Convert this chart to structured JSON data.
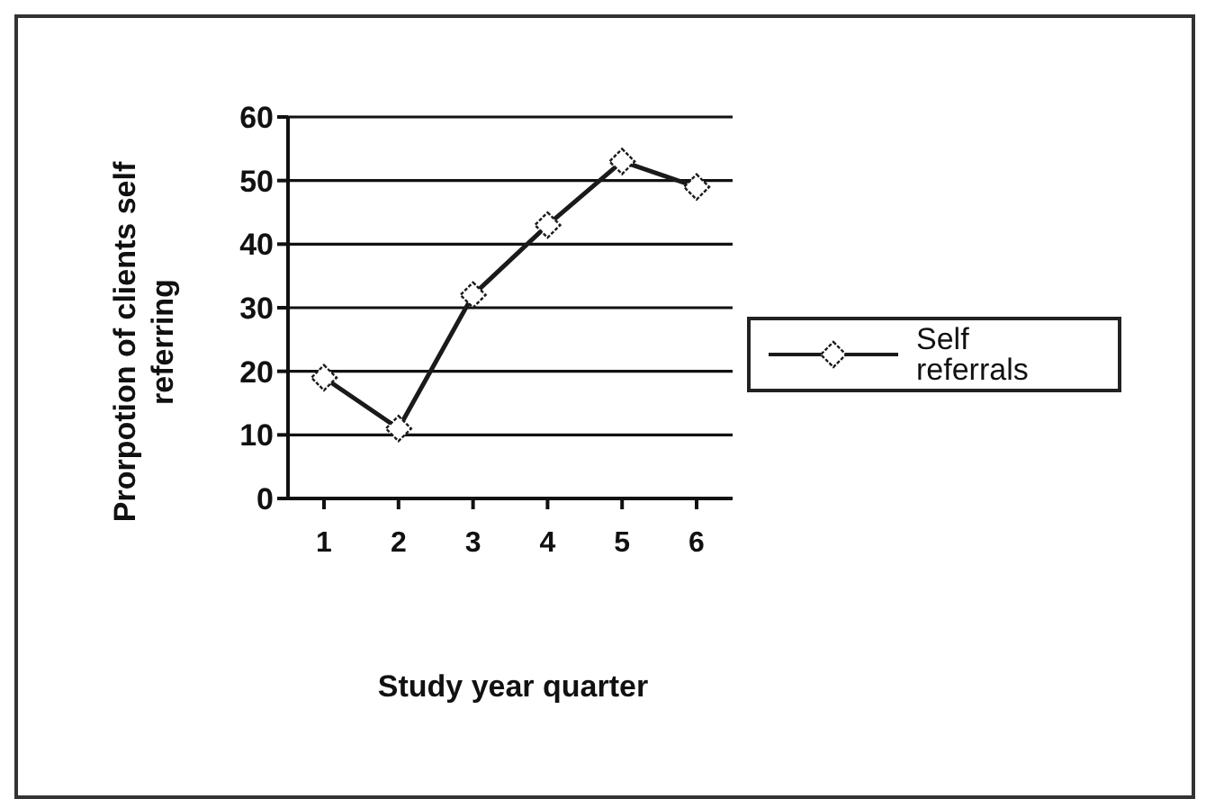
{
  "chart_data": {
    "type": "line",
    "xlabel": "Study year quarter",
    "ylabel": "Prorpotion of clients self referring",
    "categories": [
      "1",
      "2",
      "3",
      "4",
      "5",
      "6"
    ],
    "series": [
      {
        "name": "Self referrals",
        "color": "#1a1a1a",
        "values": [
          19,
          11,
          32,
          43,
          53,
          49
        ]
      }
    ],
    "ylim": [
      0,
      60
    ],
    "yticks": [
      0,
      10,
      20,
      30,
      40,
      50,
      60
    ],
    "grid": "y",
    "legend": "right",
    "marker": "diamond",
    "line_style": "solid"
  }
}
